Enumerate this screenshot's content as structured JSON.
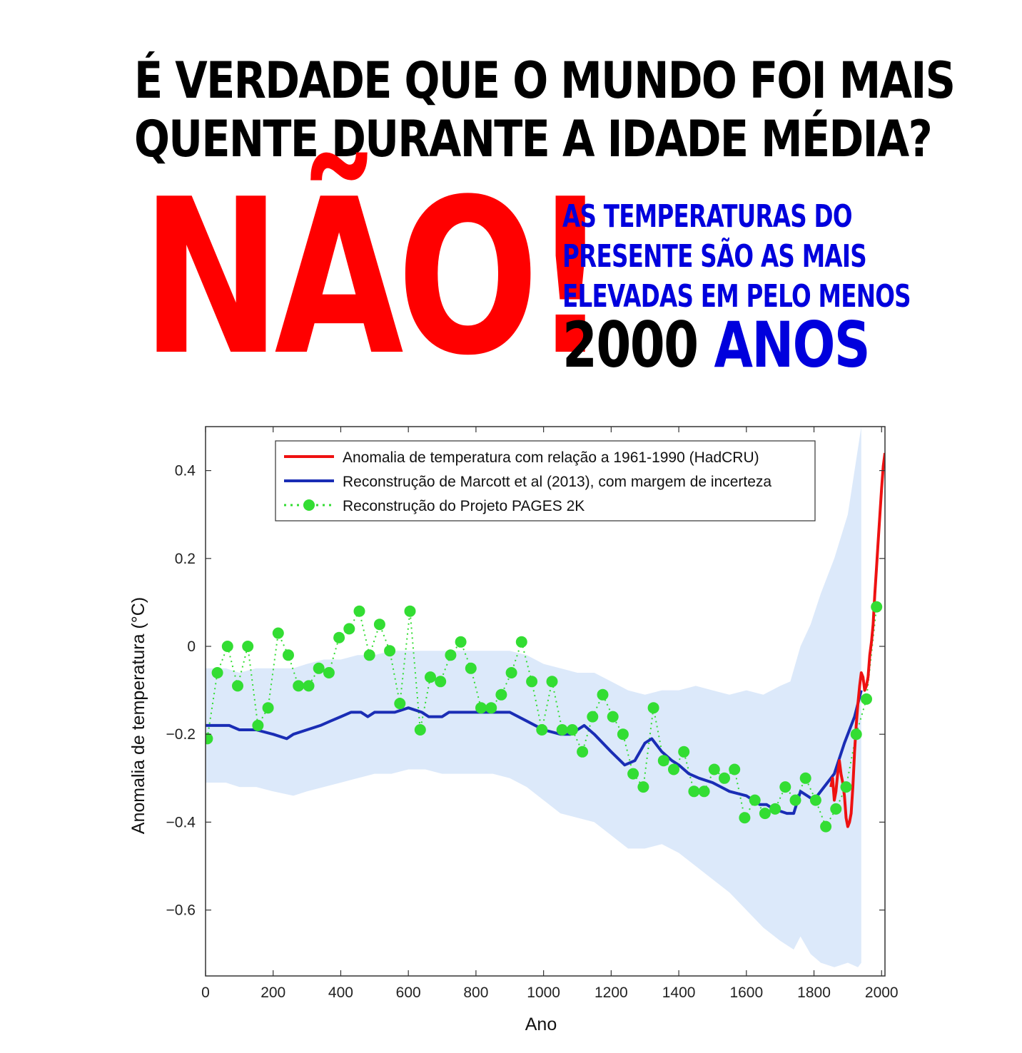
{
  "headline": {
    "line1": "É VERDADE QUE O MUNDO FOI MAIS",
    "line2": "QUENTE DURANTE A IDADE MÉDIA?"
  },
  "answer": "NÃO!",
  "subtitle": {
    "line1": "AS TEMPERATURAS DO",
    "line2": "PRESENTE SÃO AS MAIS",
    "line3": "ELEVADAS EM PELO MENOS",
    "number": "2000",
    "unit": "ANOS"
  },
  "colors": {
    "red": "#ff0000",
    "blue": "#0000dd",
    "marcott": "#1a2db5",
    "band": "#dce9fa",
    "pages": "#33dd33",
    "hadcru": "#ee1111"
  },
  "chart_data": {
    "type": "line",
    "xlabel": "Ano",
    "ylabel": "Anomalia de temperatura (°C)",
    "xlim": [
      0,
      2010
    ],
    "ylim": [
      -0.75,
      0.5
    ],
    "xticks": [
      0,
      200,
      400,
      600,
      800,
      1000,
      1200,
      1400,
      1600,
      1800,
      2000
    ],
    "yticks": [
      -0.6,
      -0.4,
      -0.2,
      0,
      0.2,
      0.4
    ],
    "ytick_labels": [
      "−0.6",
      "−0.4",
      "−0.2",
      "0",
      "0.2",
      "0.4"
    ],
    "legend": [
      "Anomalia de temperatura com relação a 1961-1990 (HadCRU)",
      "Reconstrução de Marcott et al (2013), com margem de incerteza",
      "Reconstrução do Projeto PAGES 2K"
    ],
    "legend_position": "top",
    "marcott": {
      "x": [
        0,
        70,
        100,
        150,
        200,
        240,
        260,
        300,
        340,
        370,
        400,
        430,
        460,
        480,
        500,
        560,
        600,
        640,
        660,
        700,
        720,
        800,
        900,
        950,
        1000,
        1050,
        1080,
        1100,
        1120,
        1150,
        1200,
        1240,
        1270,
        1300,
        1320,
        1350,
        1380,
        1400,
        1430,
        1460,
        1500,
        1550,
        1600,
        1620,
        1640,
        1660,
        1680,
        1720,
        1740,
        1760,
        1780,
        1800,
        1830,
        1860,
        1890,
        1920,
        1940
      ],
      "y": [
        -0.18,
        -0.18,
        -0.19,
        -0.19,
        -0.2,
        -0.21,
        -0.2,
        -0.19,
        -0.18,
        -0.17,
        -0.16,
        -0.15,
        -0.15,
        -0.16,
        -0.15,
        -0.15,
        -0.14,
        -0.15,
        -0.16,
        -0.16,
        -0.15,
        -0.15,
        -0.15,
        -0.17,
        -0.19,
        -0.2,
        -0.2,
        -0.19,
        -0.18,
        -0.2,
        -0.24,
        -0.27,
        -0.26,
        -0.22,
        -0.21,
        -0.24,
        -0.26,
        -0.27,
        -0.29,
        -0.3,
        -0.31,
        -0.33,
        -0.34,
        -0.35,
        -0.36,
        -0.36,
        -0.37,
        -0.38,
        -0.38,
        -0.33,
        -0.34,
        -0.35,
        -0.32,
        -0.29,
        -0.22,
        -0.16,
        -0.1
      ]
    },
    "band_upper": {
      "x": [
        0,
        60,
        100,
        150,
        200,
        260,
        300,
        350,
        400,
        450,
        500,
        550,
        600,
        650,
        700,
        750,
        800,
        850,
        900,
        950,
        1000,
        1050,
        1100,
        1150,
        1200,
        1250,
        1300,
        1350,
        1400,
        1450,
        1500,
        1550,
        1600,
        1650,
        1700,
        1730,
        1760,
        1790,
        1820,
        1860,
        1900,
        1930,
        1940
      ],
      "y": [
        -0.05,
        -0.05,
        -0.06,
        -0.05,
        -0.05,
        -0.05,
        -0.04,
        -0.03,
        -0.03,
        -0.02,
        -0.02,
        -0.01,
        -0.01,
        -0.01,
        -0.01,
        -0.01,
        -0.01,
        -0.01,
        -0.01,
        -0.02,
        -0.04,
        -0.05,
        -0.06,
        -0.06,
        -0.08,
        -0.1,
        -0.11,
        -0.1,
        -0.1,
        -0.09,
        -0.1,
        -0.11,
        -0.1,
        -0.11,
        -0.09,
        -0.08,
        0.0,
        0.05,
        0.12,
        0.2,
        0.3,
        0.45,
        0.5
      ]
    },
    "band_lower": {
      "x": [
        0,
        60,
        100,
        150,
        200,
        260,
        300,
        350,
        400,
        450,
        500,
        550,
        600,
        650,
        700,
        750,
        800,
        850,
        900,
        950,
        1000,
        1050,
        1100,
        1150,
        1200,
        1250,
        1300,
        1350,
        1400,
        1450,
        1500,
        1550,
        1600,
        1650,
        1700,
        1740,
        1760,
        1790,
        1820,
        1860,
        1900,
        1930,
        1940
      ],
      "y": [
        -0.31,
        -0.31,
        -0.32,
        -0.32,
        -0.33,
        -0.34,
        -0.33,
        -0.32,
        -0.31,
        -0.3,
        -0.29,
        -0.29,
        -0.28,
        -0.28,
        -0.29,
        -0.29,
        -0.29,
        -0.29,
        -0.3,
        -0.32,
        -0.35,
        -0.38,
        -0.39,
        -0.4,
        -0.43,
        -0.46,
        -0.46,
        -0.45,
        -0.47,
        -0.5,
        -0.53,
        -0.56,
        -0.6,
        -0.64,
        -0.67,
        -0.69,
        -0.66,
        -0.7,
        -0.72,
        -0.73,
        -0.72,
        -0.73,
        -0.72
      ]
    },
    "pages2k": {
      "x": [
        5,
        35,
        65,
        95,
        125,
        155,
        185,
        215,
        245,
        275,
        305,
        335,
        365,
        395,
        425,
        455,
        485,
        515,
        545,
        575,
        605,
        635,
        665,
        695,
        725,
        755,
        785,
        815,
        845,
        875,
        905,
        935,
        965,
        995,
        1025,
        1055,
        1085,
        1115,
        1145,
        1175,
        1205,
        1235,
        1265,
        1295,
        1325,
        1355,
        1385,
        1415,
        1445,
        1475,
        1505,
        1535,
        1565,
        1595,
        1625,
        1655,
        1685,
        1715,
        1745,
        1775,
        1805,
        1835,
        1865,
        1895,
        1925,
        1955,
        1985
      ],
      "y": [
        -0.21,
        -0.06,
        0.0,
        -0.09,
        0.0,
        -0.18,
        -0.14,
        0.03,
        -0.02,
        -0.09,
        -0.09,
        -0.05,
        -0.06,
        0.02,
        0.04,
        0.08,
        -0.02,
        0.05,
        -0.01,
        -0.13,
        0.08,
        -0.19,
        -0.07,
        -0.08,
        -0.02,
        0.01,
        -0.05,
        -0.14,
        -0.14,
        -0.11,
        -0.06,
        0.01,
        -0.08,
        -0.19,
        -0.08,
        -0.19,
        -0.19,
        -0.24,
        -0.16,
        -0.11,
        -0.16,
        -0.2,
        -0.29,
        -0.32,
        -0.14,
        -0.26,
        -0.28,
        -0.24,
        -0.33,
        -0.33,
        -0.28,
        -0.3,
        -0.28,
        -0.39,
        -0.35,
        -0.38,
        -0.37,
        -0.32,
        -0.35,
        -0.3,
        -0.35,
        -0.41,
        -0.37,
        -0.32,
        -0.2,
        -0.12,
        0.09
      ]
    },
    "hadcru": {
      "x": [
        1850,
        1855,
        1860,
        1865,
        1870,
        1875,
        1880,
        1885,
        1890,
        1895,
        1900,
        1905,
        1910,
        1915,
        1920,
        1925,
        1930,
        1935,
        1940,
        1945,
        1950,
        1955,
        1960,
        1965,
        1970,
        1975,
        1980,
        1985,
        1990,
        1995,
        2000,
        2005,
        2010
      ],
      "y": [
        -0.32,
        -0.3,
        -0.35,
        -0.33,
        -0.29,
        -0.26,
        -0.29,
        -0.31,
        -0.34,
        -0.39,
        -0.41,
        -0.4,
        -0.38,
        -0.32,
        -0.24,
        -0.18,
        -0.13,
        -0.09,
        -0.06,
        -0.07,
        -0.1,
        -0.09,
        -0.07,
        -0.02,
        0.01,
        0.05,
        0.12,
        0.18,
        0.24,
        0.3,
        0.36,
        0.41,
        0.44
      ]
    }
  }
}
